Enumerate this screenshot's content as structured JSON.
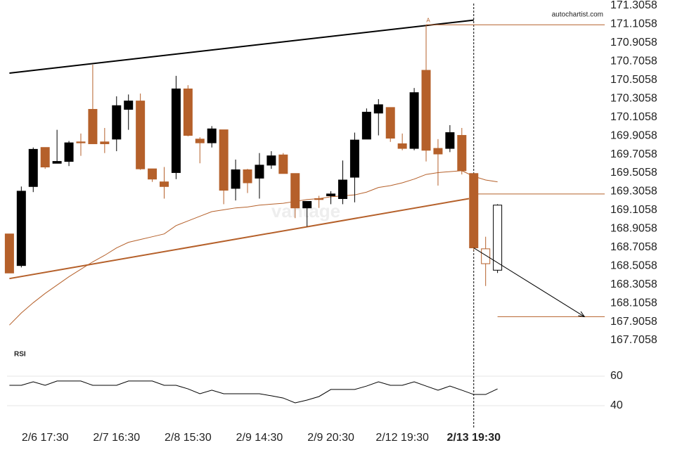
{
  "chart_data": {
    "type": "candlestick",
    "source": "autochartist.com",
    "watermark": "vantage",
    "categories": [
      null,
      null,
      null,
      "2/6 17:30",
      null,
      null,
      null,
      null,
      null,
      "2/7 16:30",
      null,
      null,
      null,
      null,
      null,
      "2/8 15:30",
      null,
      null,
      null,
      null,
      null,
      "2/9 14:30",
      null,
      null,
      null,
      null,
      null,
      "2/9 20:30",
      null,
      null,
      null,
      null,
      null,
      "2/12 19:30",
      null,
      null,
      null,
      null,
      null,
      "2/13 19:30",
      null,
      null
    ],
    "highlight_index": 39,
    "xlim": [
      -0.2,
      50
    ],
    "ylim": [
      167.7058,
      171.3058
    ],
    "yticks": [
      171.3058,
      171.1058,
      170.9058,
      170.7058,
      170.5058,
      170.3058,
      170.1058,
      169.9058,
      169.7058,
      169.5058,
      169.3058,
      169.1058,
      168.9058,
      168.7058,
      168.5058,
      168.3058,
      168.1058,
      167.9058,
      167.7058
    ],
    "up_color": "#000000",
    "down_color": "#b5602a",
    "open": [
      168.85,
      168.51,
      169.36,
      169.78,
      169.61,
      169.63,
      169.84,
      170.19,
      169.84,
      169.87,
      170.19,
      170.28,
      169.55,
      169.41,
      169.51,
      170.41,
      169.87,
      169.83,
      169.97,
      169.34,
      169.54,
      169.45,
      169.59,
      169.7,
      169.5,
      169.13,
      169.23,
      169.26,
      169.23,
      169.46,
      169.87,
      170.15,
      170.21,
      169.82,
      169.77,
      170.61,
      169.77,
      169.77,
      169.91,
      169.5,
      168.69,
      168.46
    ],
    "high": [
      168.85,
      169.36,
      169.78,
      169.78,
      169.97,
      169.85,
      169.93,
      170.67,
      169.99,
      170.33,
      170.35,
      170.36,
      169.55,
      169.57,
      170.55,
      170.45,
      169.89,
      170.01,
      169.97,
      169.65,
      169.55,
      169.72,
      169.74,
      169.72,
      169.5,
      169.2,
      169.26,
      169.31,
      169.64,
      169.94,
      170.2,
      170.3,
      170.21,
      169.93,
      170.42,
      171.1,
      169.87,
      170.02,
      169.99,
      169.5,
      168.82,
      169.17
    ],
    "low": [
      168.43,
      168.49,
      169.3,
      169.55,
      169.61,
      169.58,
      169.69,
      169.82,
      169.72,
      169.74,
      169.97,
      169.54,
      169.41,
      169.23,
      169.44,
      169.9,
      169.61,
      169.78,
      169.17,
      169.21,
      169.29,
      169.23,
      169.55,
      169.5,
      169.02,
      168.93,
      169.13,
      169.17,
      169.17,
      169.19,
      169.87,
      169.91,
      169.84,
      169.75,
      169.75,
      169.63,
      169.37,
      169.73,
      169.49,
      168.67,
      168.29,
      168.43
    ],
    "close": [
      168.43,
      169.31,
      169.76,
      169.57,
      169.63,
      169.83,
      169.83,
      169.82,
      169.82,
      170.23,
      170.28,
      169.55,
      169.44,
      169.36,
      170.41,
      169.91,
      169.83,
      169.98,
      169.32,
      169.54,
      169.4,
      169.59,
      169.69,
      169.5,
      169.13,
      169.2,
      169.22,
      169.28,
      169.43,
      169.86,
      170.16,
      170.24,
      169.88,
      169.77,
      170.37,
      169.75,
      169.71,
      169.94,
      169.53,
      168.7,
      168.53,
      169.16
    ],
    "hollow": [
      false,
      false,
      false,
      false,
      false,
      false,
      false,
      false,
      false,
      false,
      false,
      false,
      false,
      false,
      false,
      false,
      false,
      false,
      false,
      false,
      false,
      false,
      false,
      false,
      false,
      false,
      false,
      false,
      false,
      false,
      false,
      false,
      false,
      false,
      false,
      false,
      false,
      false,
      false,
      false,
      true,
      true
    ],
    "moving_average": {
      "color": "#b5602a",
      "values": [
        167.87,
        168.0,
        168.11,
        168.21,
        168.3,
        168.39,
        168.47,
        168.55,
        168.62,
        168.7,
        168.76,
        168.79,
        168.82,
        168.85,
        168.94,
        168.99,
        169.04,
        169.09,
        169.11,
        169.13,
        169.14,
        169.16,
        169.17,
        169.18,
        169.2,
        169.22,
        169.23,
        169.25,
        169.26,
        169.27,
        169.3,
        169.35,
        169.37,
        169.4,
        169.44,
        169.49,
        169.51,
        169.52,
        169.53,
        169.47,
        169.43,
        169.41
      ]
    },
    "trendlines": [
      {
        "color": "#000000",
        "x": [
          0,
          39
        ],
        "values": [
          170.58,
          171.15
        ]
      },
      {
        "color": "#b5602a",
        "x": [
          0,
          38.6
        ],
        "values": [
          168.37,
          169.23
        ]
      }
    ],
    "levels": [
      {
        "value": 171.1,
        "from": 35,
        "color": "#b5602a"
      },
      {
        "value": 169.28,
        "from": 39,
        "color": "#b5602a"
      },
      {
        "value": 167.96,
        "from": 41,
        "color": "#b5602a"
      }
    ],
    "pattern_label": "A",
    "pattern_index": 35,
    "arrow": {
      "x": [
        39,
        48.3
      ],
      "values": [
        168.7,
        167.96
      ],
      "color": "#000000"
    },
    "rsi": {
      "label": "RSI",
      "ylim": [
        25,
        80
      ],
      "yticks": [
        60,
        40
      ],
      "color": "#000000",
      "values": [
        53.8,
        53.8,
        56.2,
        53.8,
        56.7,
        56.7,
        56.7,
        53.8,
        53.8,
        53.8,
        56.7,
        56.7,
        56.7,
        53.8,
        53.8,
        51.4,
        48.1,
        50.5,
        48.1,
        48.1,
        48.1,
        48.1,
        46.7,
        45.2,
        41.9,
        43.8,
        46.2,
        51.0,
        51.0,
        51.0,
        53.3,
        56.2,
        53.8,
        53.8,
        56.2,
        53.3,
        50.5,
        53.3,
        50.5,
        47.6,
        47.6,
        51.4
      ]
    }
  }
}
